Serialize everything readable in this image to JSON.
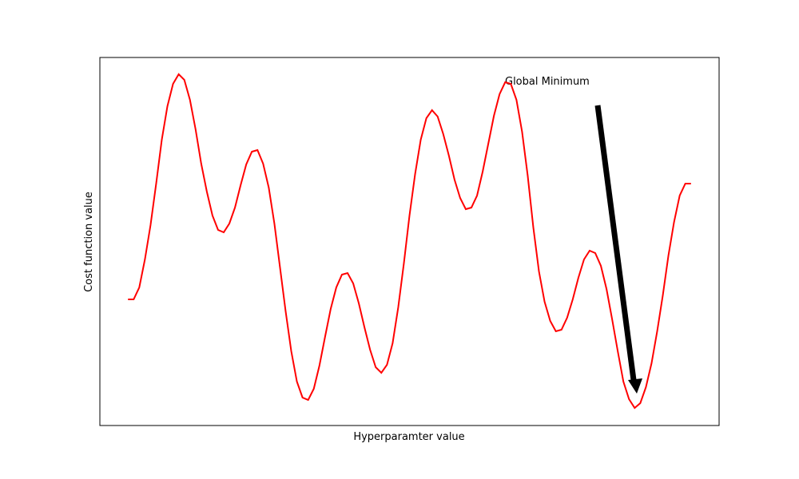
{
  "chart_data": {
    "type": "line",
    "xlabel": "Hyperparamter value",
    "ylabel": "Cost function value",
    "annotation": "Global Minimum",
    "xlim": [
      -5,
      105
    ],
    "ylim": [
      0,
      461
    ],
    "series": [
      {
        "color": "#ff0000",
        "x": [
          0,
          1,
          2,
          3,
          4,
          5,
          6,
          7,
          8,
          9,
          10,
          11,
          12,
          13,
          14,
          15,
          16,
          17,
          18,
          19,
          20,
          21,
          22,
          23,
          24,
          25,
          26,
          27,
          28,
          29,
          30,
          31,
          32,
          33,
          34,
          35,
          36,
          37,
          38,
          39,
          40,
          41,
          42,
          43,
          44,
          45,
          46,
          47,
          48,
          49,
          50,
          51,
          52,
          53,
          54,
          55,
          56,
          57,
          58,
          59,
          60,
          61,
          62,
          63,
          64,
          65,
          66,
          67,
          68,
          69,
          70,
          71,
          72,
          73,
          74,
          75,
          76,
          77,
          78,
          79,
          80,
          81,
          82,
          83,
          84,
          85,
          86,
          87,
          88,
          89,
          90,
          91,
          92,
          93,
          94,
          95,
          96,
          97,
          98,
          99,
          100
        ],
        "values": [
          158,
          158,
          173,
          208,
          251,
          303,
          358,
          400,
          428,
          440,
          433,
          408,
          371,
          328,
          293,
          263,
          245,
          242,
          253,
          273,
          301,
          327,
          343,
          345,
          328,
          298,
          253,
          198,
          143,
          93,
          55,
          35,
          32,
          46,
          75,
          111,
          146,
          173,
          189,
          191,
          178,
          153,
          123,
          95,
          73,
          66,
          76,
          103,
          148,
          203,
          263,
          315,
          358,
          385,
          395,
          387,
          365,
          338,
          308,
          285,
          271,
          273,
          288,
          318,
          353,
          388,
          415,
          430,
          428,
          408,
          368,
          313,
          248,
          193,
          155,
          131,
          118,
          120,
          135,
          158,
          185,
          208,
          219,
          216,
          200,
          171,
          133,
          93,
          55,
          33,
          22,
          28,
          48,
          78,
          118,
          163,
          213,
          255,
          288,
          303,
          303
        ]
      }
    ]
  }
}
